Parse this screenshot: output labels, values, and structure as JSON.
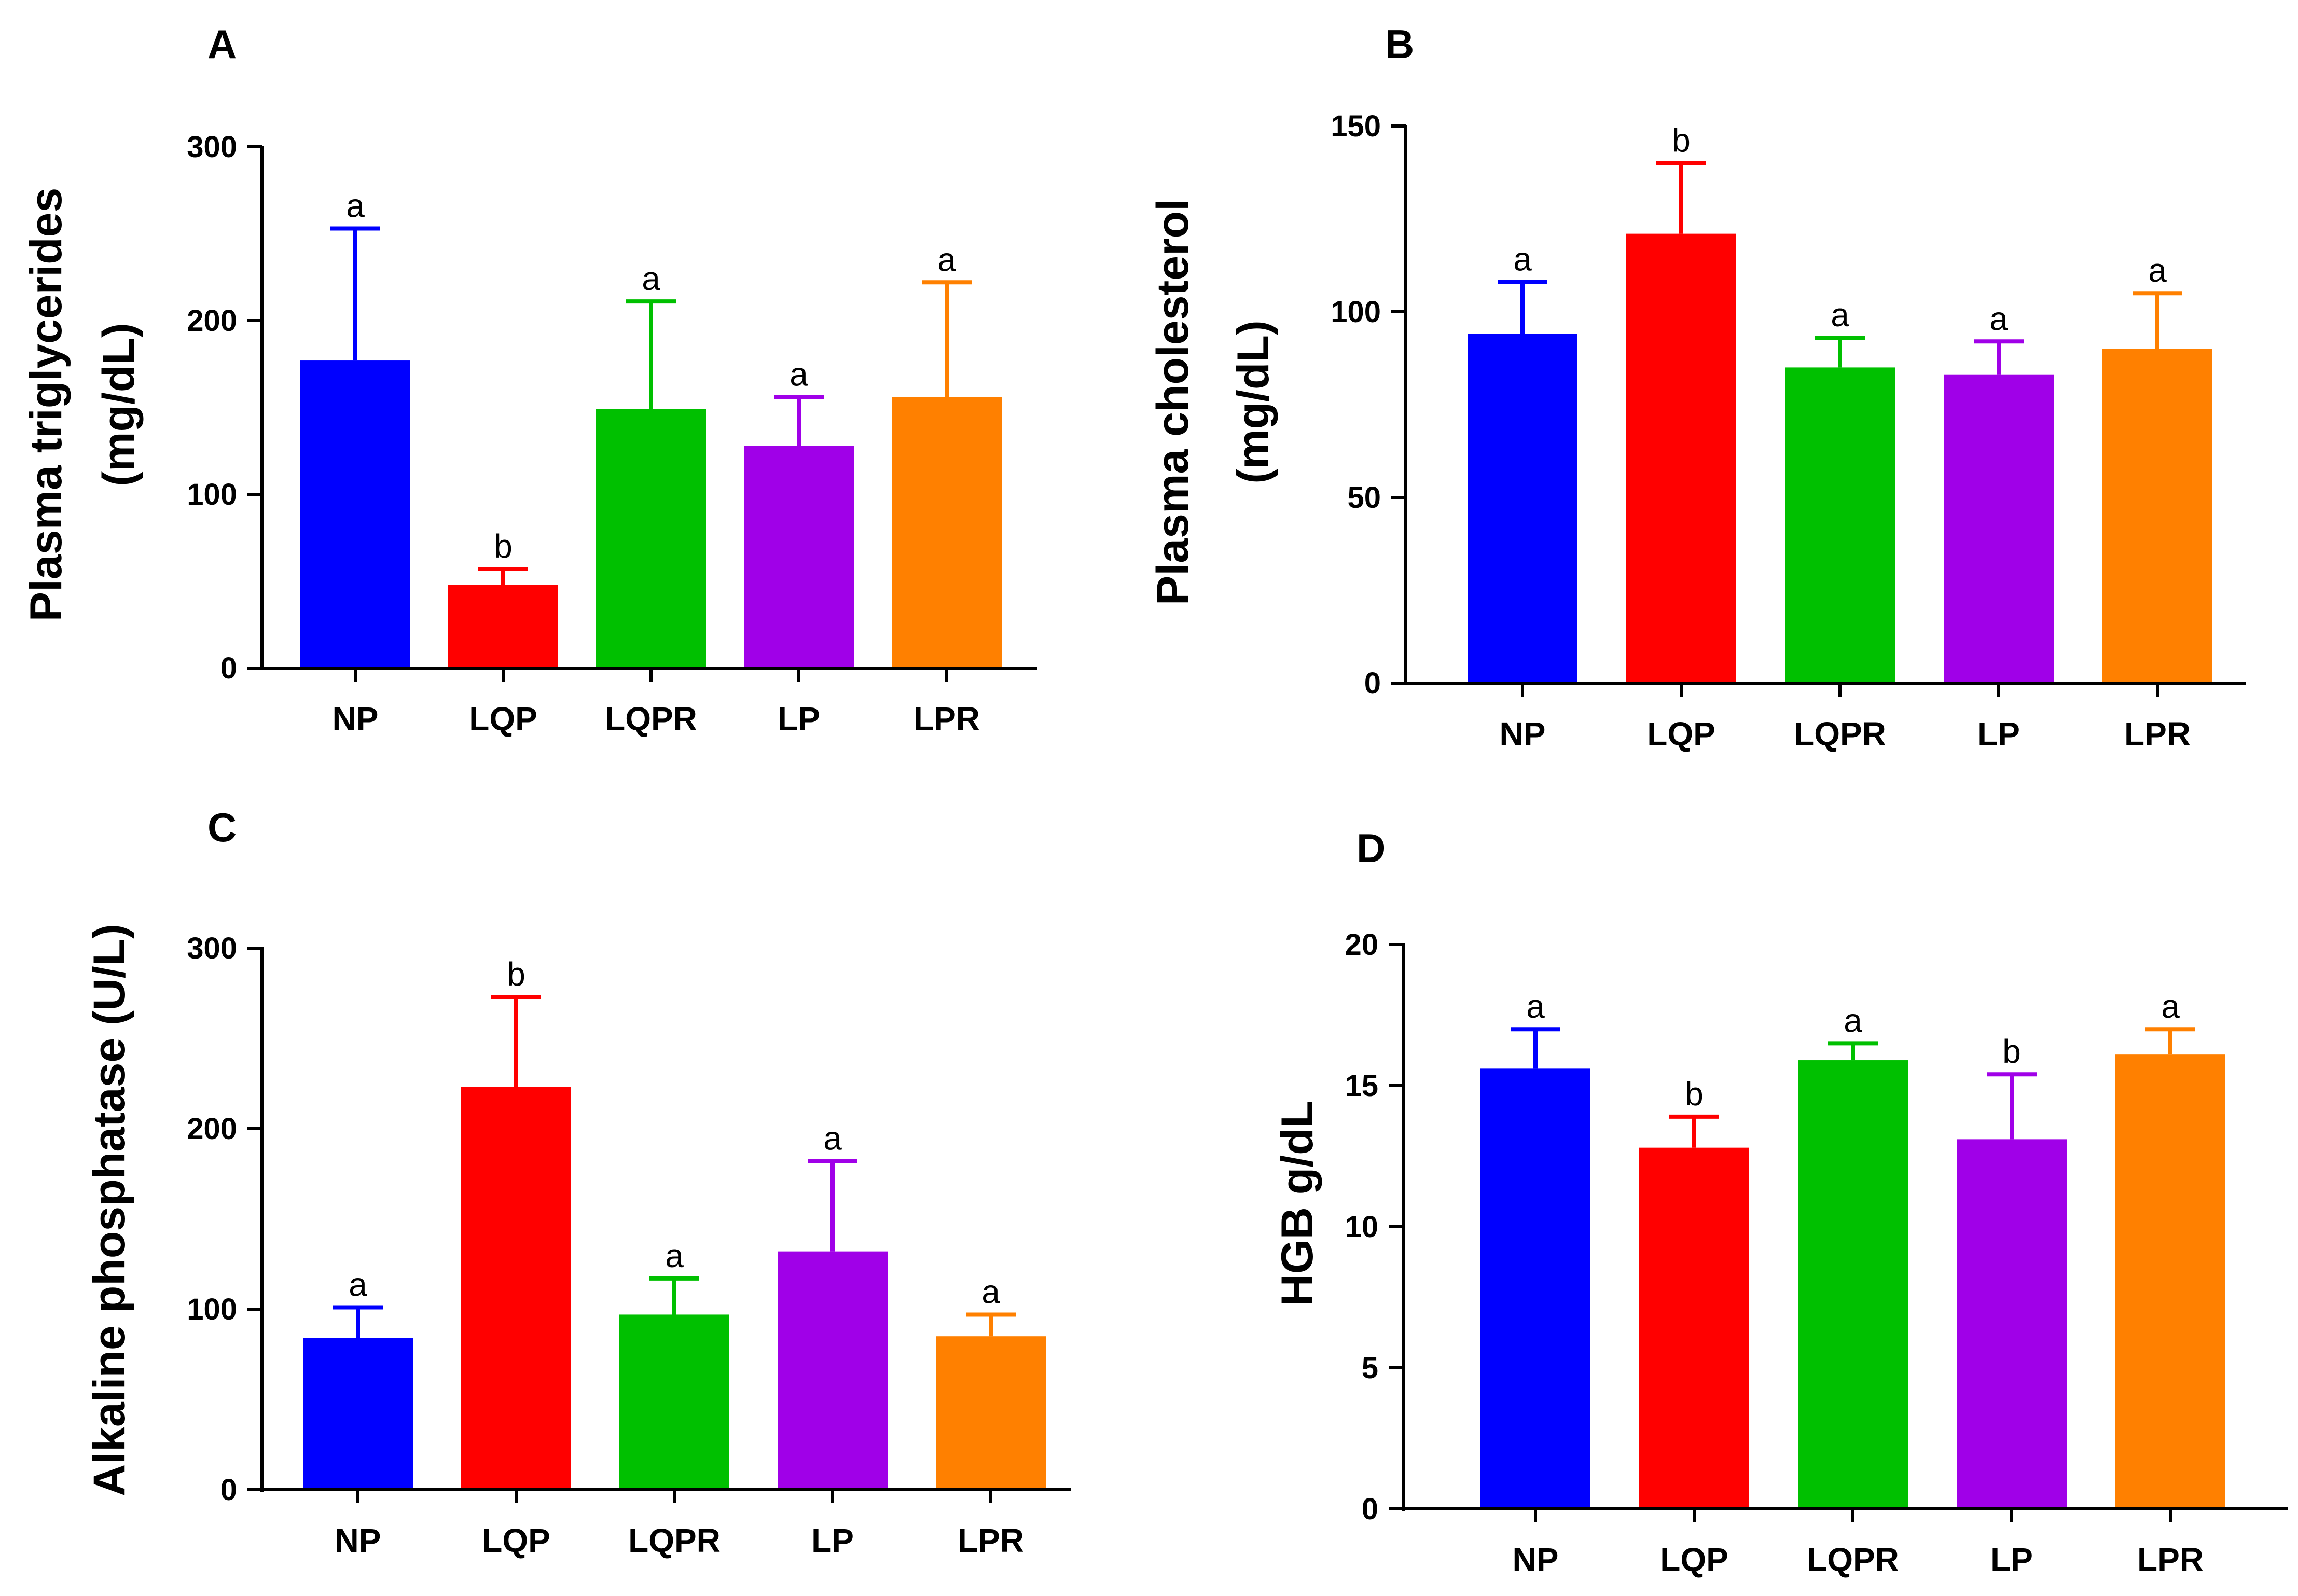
{
  "colors": {
    "NP": "#0000ff",
    "LQP": "#ff0000",
    "LQPR": "#00c000",
    "LP": "#a000e8",
    "LPR": "#ff8000",
    "axis": "#000000"
  },
  "chart_data": [
    {
      "id": "A",
      "panel_label": "A",
      "type": "bar",
      "ylabel_lines": [
        "Plasma triglycerides",
        "(mg/dL)"
      ],
      "categories": [
        "NP",
        "LQP",
        "LQPR",
        "LP",
        "LPR"
      ],
      "values": [
        177,
        48,
        149,
        128,
        156
      ],
      "errors": [
        76,
        9,
        62,
        28,
        66
      ],
      "significance": [
        "a",
        "b",
        "a",
        "a",
        "a"
      ],
      "ylim": [
        0,
        300
      ],
      "yticks": [
        0,
        100,
        200,
        300
      ]
    },
    {
      "id": "B",
      "panel_label": "B",
      "type": "bar",
      "ylabel_lines": [
        "Plasma cholesterol",
        "(mg/dL)"
      ],
      "categories": [
        "NP",
        "LQP",
        "LQPR",
        "LP",
        "LPR"
      ],
      "values": [
        94,
        121,
        85,
        83,
        90
      ],
      "errors": [
        14,
        19,
        8,
        9,
        15
      ],
      "significance": [
        "a",
        "b",
        "a",
        "a",
        "a"
      ],
      "ylim": [
        0,
        150
      ],
      "yticks": [
        0,
        50,
        100,
        150
      ]
    },
    {
      "id": "C",
      "panel_label": "C",
      "type": "bar",
      "ylabel_lines": [
        "Alkaline phosphatase  (U/L)"
      ],
      "categories": [
        "NP",
        "LQP",
        "LQPR",
        "LP",
        "LPR"
      ],
      "values": [
        84,
        223,
        97,
        132,
        85
      ],
      "errors": [
        17,
        50,
        20,
        50,
        12
      ],
      "significance": [
        "a",
        "b",
        "a",
        "a",
        "a"
      ],
      "ylim": [
        0,
        300
      ],
      "yticks": [
        0,
        100,
        200,
        300
      ]
    },
    {
      "id": "D",
      "panel_label": "D",
      "type": "bar",
      "ylabel_lines": [
        "HGB g/dL"
      ],
      "categories": [
        "NP",
        "LQP",
        "LQPR",
        "LP",
        "LPR"
      ],
      "values": [
        15.6,
        12.8,
        15.9,
        13.1,
        16.1
      ],
      "errors": [
        1.4,
        1.1,
        0.6,
        2.3,
        0.9
      ],
      "significance": [
        "a",
        "b",
        "a",
        "b",
        "a"
      ],
      "ylim": [
        0,
        20
      ],
      "yticks": [
        0,
        5,
        10,
        15,
        20
      ]
    }
  ]
}
